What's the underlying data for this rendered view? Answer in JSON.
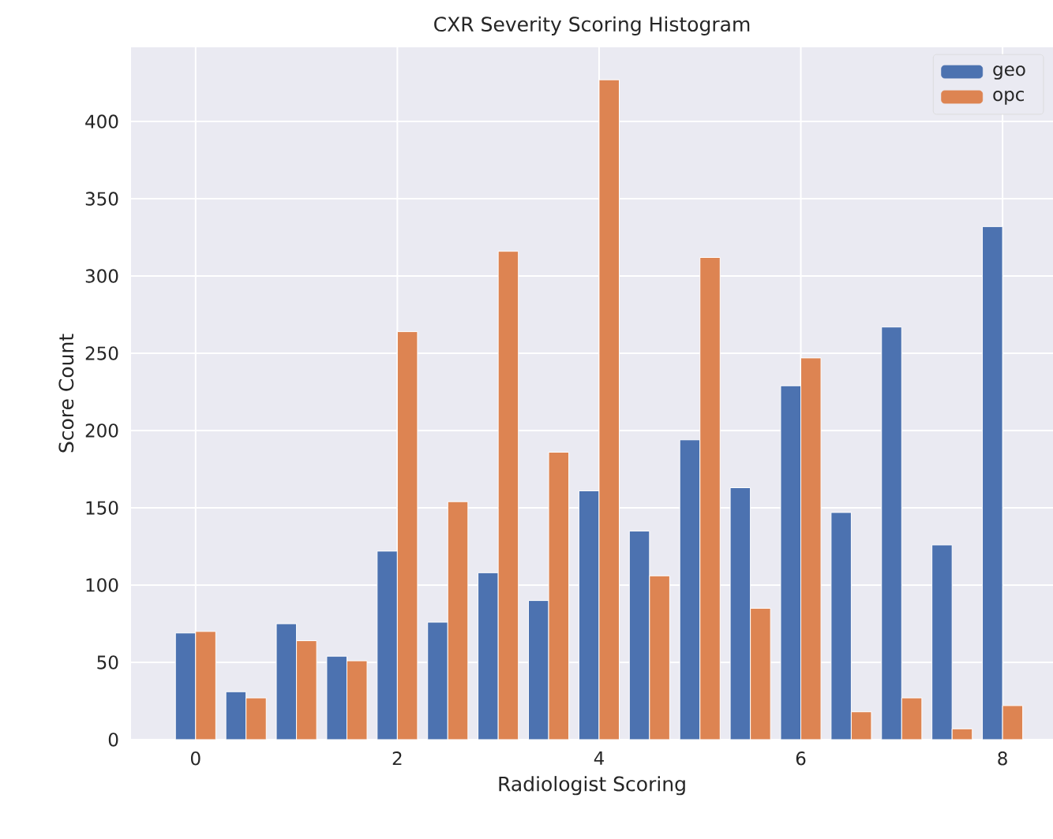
{
  "chart_data": {
    "type": "histogram",
    "title": "CXR Severity Scoring Histogram",
    "xlabel": "Radiologist Scoring",
    "ylabel": "Score Count",
    "bins": [
      -0.25,
      0.25,
      0.75,
      1.25,
      1.75,
      2.25,
      2.75,
      3.25,
      3.75,
      4.25,
      4.75,
      5.25,
      5.75,
      6.25,
      6.75,
      7.25,
      7.75,
      8.25
    ],
    "series": [
      {
        "name": "geo",
        "color": "#4c72b0",
        "values": [
          69,
          31,
          75,
          54,
          122,
          76,
          108,
          90,
          161,
          135,
          194,
          163,
          229,
          147,
          267,
          126,
          332
        ]
      },
      {
        "name": "opc",
        "color": "#dd8452",
        "values": [
          70,
          27,
          64,
          51,
          264,
          154,
          316,
          186,
          427,
          106,
          312,
          85,
          247,
          18,
          27,
          7,
          22
        ]
      }
    ],
    "xlim": [
      -0.64,
      8.5
    ],
    "ylim": [
      0,
      448
    ],
    "xticks": [
      0,
      2,
      4,
      6,
      8
    ],
    "yticks": [
      0,
      50,
      100,
      150,
      200,
      250,
      300,
      350,
      400
    ],
    "grid": true,
    "legend": "top right"
  }
}
